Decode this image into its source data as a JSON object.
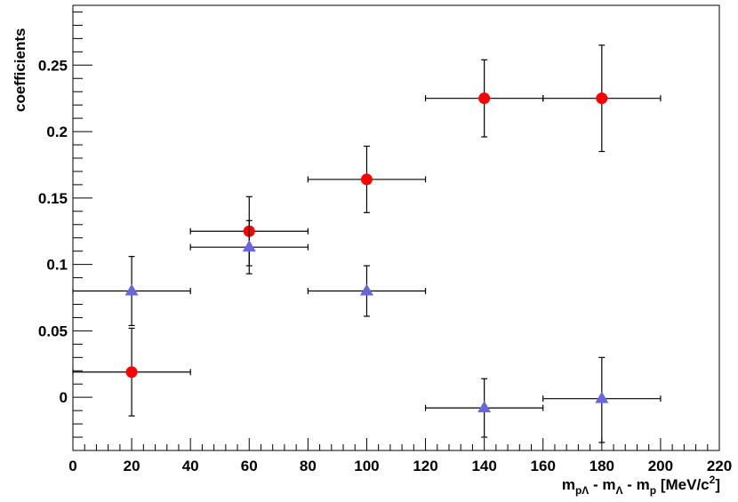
{
  "chart_data": {
    "type": "scatter",
    "title": "",
    "xlabel": {
      "parts": [
        {
          "text": "m",
          "style": "normal"
        },
        {
          "text": "pΛ",
          "style": "sub"
        },
        {
          "text": " - m",
          "style": "normal"
        },
        {
          "text": "Λ",
          "style": "sub"
        },
        {
          "text": " - m",
          "style": "normal"
        },
        {
          "text": "p",
          "style": "sub"
        },
        {
          "text": " [MeV/c",
          "style": "normal"
        },
        {
          "text": "2",
          "style": "sup"
        },
        {
          "text": "]",
          "style": "normal"
        }
      ]
    },
    "ylabel": "coefficients",
    "xlim": [
      0,
      220
    ],
    "ylim": [
      -0.04,
      0.295
    ],
    "x_ticks": [
      0,
      20,
      40,
      60,
      80,
      100,
      120,
      140,
      160,
      180,
      200,
      220
    ],
    "x_tick_labels": [
      "0",
      "20",
      "40",
      "60",
      "80",
      "100",
      "120",
      "140",
      "160",
      "180",
      "200",
      "220"
    ],
    "y_ticks": [
      0,
      0.05,
      0.1,
      0.15,
      0.2,
      0.25
    ],
    "y_tick_labels": [
      "0",
      "0.05",
      "0.1",
      "0.15",
      "0.2",
      "0.25"
    ],
    "grid": false,
    "legend": "none",
    "series": [
      {
        "marker": "circle",
        "color": "#ff0000",
        "points": [
          {
            "x": 20,
            "y": 0.019,
            "xerr": 20,
            "ylo": -0.014,
            "yhi": 0.052
          },
          {
            "x": 60,
            "y": 0.125,
            "xerr": 20,
            "ylo": 0.099,
            "yhi": 0.151
          },
          {
            "x": 100,
            "y": 0.164,
            "xerr": 20,
            "ylo": 0.139,
            "yhi": 0.189
          },
          {
            "x": 140,
            "y": 0.225,
            "xerr": 20,
            "ylo": 0.196,
            "yhi": 0.254
          },
          {
            "x": 180,
            "y": 0.225,
            "xerr": 20,
            "ylo": 0.185,
            "yhi": 0.265
          }
        ]
      },
      {
        "marker": "triangle",
        "color": "#6666dd",
        "points": [
          {
            "x": 20,
            "y": 0.08,
            "xerr": 20,
            "ylo": 0.054,
            "yhi": 0.106
          },
          {
            "x": 60,
            "y": 0.113,
            "xerr": 20,
            "ylo": 0.093,
            "yhi": 0.133
          },
          {
            "x": 100,
            "y": 0.08,
            "xerr": 20,
            "ylo": 0.061,
            "yhi": 0.099
          },
          {
            "x": 140,
            "y": -0.008,
            "xerr": 20,
            "ylo": -0.03,
            "yhi": 0.014
          },
          {
            "x": 180,
            "y": -0.001,
            "xerr": 20,
            "ylo": -0.034,
            "yhi": 0.03
          }
        ]
      }
    ]
  }
}
